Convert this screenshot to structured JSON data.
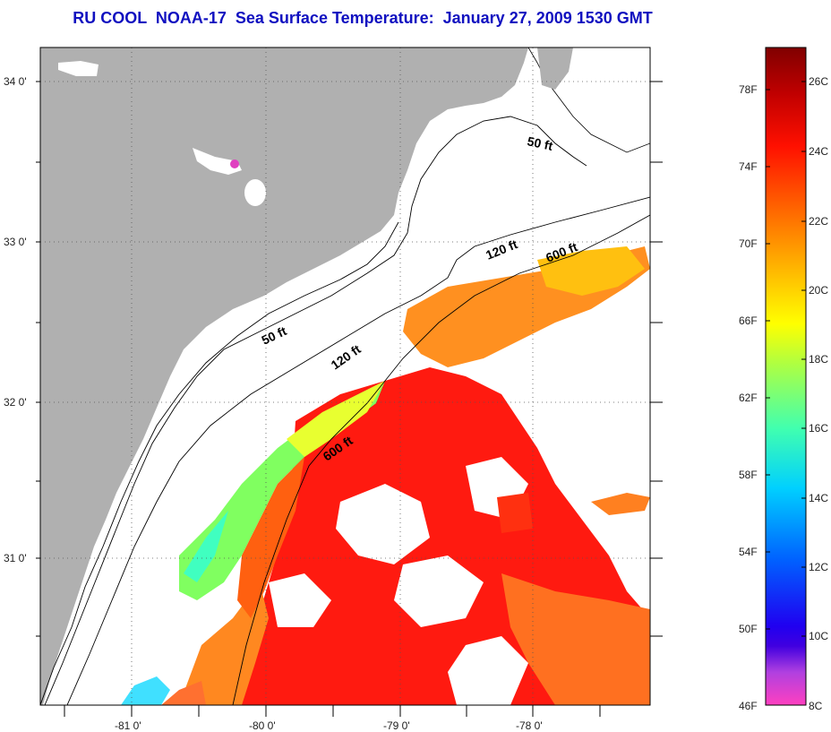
{
  "title": "RU COOL  NOAA-17  Sea Surface Temperature:  January 27, 2009 1530 GMT",
  "map": {
    "lat_labels": [
      "34 0'",
      "33 0'",
      "32 0'",
      "31 0'"
    ],
    "lon_labels": [
      "-81 0'",
      "-80 0'",
      "-79 0'",
      "-78 0'"
    ],
    "isobath_labels": [
      "50 ft",
      "120 ft",
      "600 ft",
      "50 ft",
      "120 ft",
      "600 ft"
    ],
    "land_color": "#b0b0b0"
  },
  "colorbar": {
    "fahrenheit_labels": [
      "78F",
      "74F",
      "70F",
      "66F",
      "62F",
      "58F",
      "54F",
      "50F",
      "46F"
    ],
    "celsius_labels": [
      "26C",
      "24C",
      "22C",
      "20C",
      "18C",
      "16C",
      "14C",
      "12C",
      "10C",
      "8C"
    ],
    "colors": [
      "#ff40c0",
      "#9040e0",
      "#2000e0",
      "#0060ff",
      "#00d0ff",
      "#40ffb0",
      "#b0ff40",
      "#ffff00",
      "#ffb000",
      "#ff6000",
      "#ff1000",
      "#c00000",
      "#800000"
    ]
  }
}
